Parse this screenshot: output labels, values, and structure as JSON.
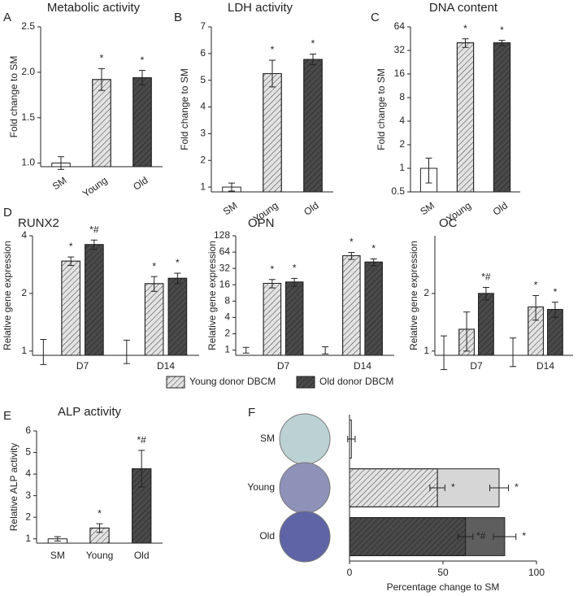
{
  "chart_data": [
    {
      "type": "bar",
      "label": "A",
      "title": "Metabolic activity",
      "y_label": "Fold change to SM",
      "categories": [
        "SM",
        "Young",
        "Old"
      ],
      "values": [
        1.0,
        1.92,
        1.94
      ],
      "errors": [
        0.07,
        0.12,
        0.08
      ],
      "annotations": [
        null,
        "*",
        "*"
      ],
      "colors": [
        "#ffffff",
        "#e3e3e3",
        "#4a4a4a"
      ],
      "ylim": [
        0.96,
        2.5
      ],
      "yticks": [
        {
          "value": 1,
          "label": "1.0"
        },
        {
          "value": 1.5,
          "label": "1.5"
        },
        {
          "value": 2,
          "label": "2.0"
        },
        {
          "value": 2.5,
          "label": "2.5"
        }
      ]
    },
    {
      "type": "bar",
      "label": "B",
      "title": "LDH activity",
      "y_label": "Fold change to SM",
      "categories": [
        "SM",
        "Young",
        "Old"
      ],
      "values": [
        1.0,
        5.25,
        5.78
      ],
      "errors": [
        0.15,
        0.5,
        0.2
      ],
      "annotations": [
        null,
        "*",
        "*"
      ],
      "colors": [
        "#ffffff",
        "#e3e3e3",
        "#4a4a4a"
      ],
      "ylim": [
        0.82,
        7
      ],
      "yticks": [
        1,
        2,
        3,
        4,
        5,
        6,
        7
      ]
    },
    {
      "type": "bar",
      "label": "C",
      "title": "DNA content",
      "y_label": "Fold change to SM",
      "yscale": "log",
      "categories": [
        "SM",
        "Young",
        "Old"
      ],
      "values": [
        1.0,
        40,
        40
      ],
      "errors": [
        0.35,
        5,
        3
      ],
      "annotations": [
        null,
        "*",
        "*"
      ],
      "colors": [
        "#ffffff",
        "#e3e3e3",
        "#4a4a4a"
      ],
      "ylim": [
        0.5,
        64
      ],
      "yticks": [
        0.5,
        1,
        2,
        4,
        8,
        16,
        32,
        64
      ]
    },
    {
      "type": "grouped_bar",
      "label": "D",
      "title": "RUNX2",
      "y_label": "Relative gene expression",
      "yscale": "log",
      "categories": [
        "D7",
        "D14"
      ],
      "control_values": [
        1,
        1
      ],
      "control_errors": [
        0.15,
        0.14
      ],
      "series": [
        {
          "name": "Young donor DBCM",
          "color": "#e3e3e3",
          "values": [
            2.95,
            2.25
          ],
          "errors": [
            0.15,
            0.2
          ],
          "annotations": [
            "*",
            "*"
          ]
        },
        {
          "name": "Old donor DBCM",
          "color": "#4a4a4a",
          "values": [
            3.6,
            2.4
          ],
          "errors": [
            0.2,
            0.15
          ],
          "annotations": [
            "*#",
            "*"
          ]
        }
      ],
      "ylim": [
        0.95,
        4
      ],
      "yticks": [
        1,
        2,
        4
      ]
    },
    {
      "type": "grouped_bar",
      "title": "OPN",
      "y_label": "Relative gene expression",
      "yscale": "log",
      "categories": [
        "D7",
        "D14"
      ],
      "control_values": [
        1,
        1
      ],
      "control_errors": [
        0.12,
        0.15
      ],
      "series": [
        {
          "color": "#e3e3e3",
          "values": [
            17,
            55
          ],
          "errors": [
            3,
            8
          ],
          "annotations": [
            "*",
            "*"
          ]
        },
        {
          "color": "#4a4a4a",
          "values": [
            18,
            42
          ],
          "errors": [
            3,
            6
          ],
          "annotations": [
            "*",
            "*"
          ]
        }
      ],
      "ylim": [
        0.8,
        128
      ],
      "yticks": [
        1,
        2,
        4,
        8,
        16,
        32,
        64,
        128
      ]
    },
    {
      "type": "grouped_bar",
      "title": "OC",
      "y_label": "Relative gene expression",
      "yscale": "log",
      "categories": [
        "D7",
        "D14"
      ],
      "control_values": [
        1,
        1
      ],
      "control_errors": [
        0.2,
        0.17
      ],
      "series": [
        {
          "color": "#e3e3e3",
          "values": [
            1.3,
            1.7
          ],
          "errors": [
            0.3,
            0.25
          ],
          "annotations": [
            null,
            "*"
          ]
        },
        {
          "color": "#4a4a4a",
          "values": [
            2.0,
            1.65
          ],
          "errors": [
            0.15,
            0.15
          ],
          "annotations": [
            "*#",
            "*"
          ]
        }
      ],
      "ylim": [
        0.95,
        4
      ],
      "yticks": [
        1,
        2
      ]
    },
    {
      "type": "bar",
      "label": "E",
      "title": "ALP activity",
      "y_label": "Relative ALP activity",
      "categories": [
        "SM",
        "Young",
        "Old"
      ],
      "values": [
        1.0,
        1.5,
        4.25
      ],
      "errors": [
        0.1,
        0.2,
        0.85
      ],
      "annotations": [
        null,
        "*",
        "*#"
      ],
      "colors": [
        "#ffffff",
        "#e3e3e3",
        "#4a4a4a"
      ],
      "ylim": [
        0.8,
        6
      ],
      "yticks": [
        1,
        2,
        3,
        4,
        5,
        6
      ]
    },
    {
      "type": "overlay_hbar",
      "label": "F",
      "x_label": "Percentage change to SM",
      "categories": [
        "SM",
        "Young",
        "Old"
      ],
      "series": [
        {
          "hatch": true,
          "colors": [
            "#ffffff",
            "#e3e3e3",
            "#4a4a4a"
          ],
          "values": [
            1,
            47,
            62
          ],
          "errors": [
            2,
            4,
            4
          ],
          "annotations": [
            null,
            "*",
            "*#"
          ]
        },
        {
          "hatch": false,
          "colors": [
            "#ffffff",
            "#d6d6d6",
            "#5e5e5e"
          ],
          "values": [
            null,
            80,
            83
          ],
          "errors": [
            null,
            5,
            6
          ],
          "annotations": [
            null,
            "*",
            "*"
          ]
        }
      ],
      "xlim": [
        0,
        100
      ],
      "xticks": [
        0,
        50,
        100
      ]
    }
  ]
}
